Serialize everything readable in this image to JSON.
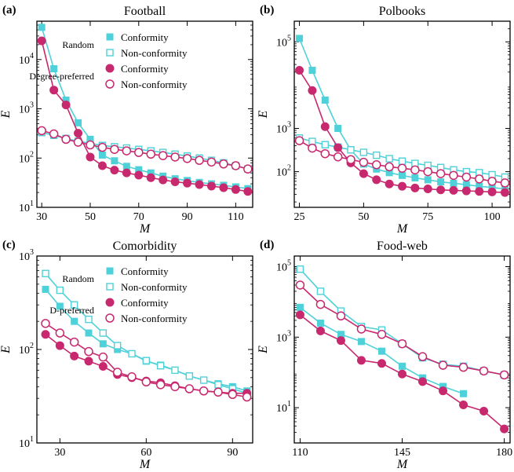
{
  "colors": {
    "random": "#4fd1d9",
    "preferred": "#c8286e",
    "axis": "#000000"
  },
  "chart_data": [
    {
      "type": "line",
      "panel_label": "(a)",
      "title": "Football",
      "xlabel": "M",
      "ylabel": "E",
      "yscale": "log",
      "xlim": [
        28,
        117
      ],
      "ylim": [
        10,
        60000
      ],
      "xticks": [
        30,
        50,
        70,
        90,
        110
      ],
      "yticks": [
        {
          "value": 10,
          "base": "10",
          "exp": "1"
        },
        {
          "value": 100,
          "base": "10",
          "exp": "2"
        },
        {
          "value": 1000,
          "base": "10",
          "exp": "3"
        },
        {
          "value": 10000,
          "base": "10",
          "exp": "4"
        }
      ],
      "x": [
        30,
        35,
        40,
        45,
        50,
        55,
        60,
        65,
        70,
        75,
        80,
        85,
        90,
        95,
        100,
        105,
        110,
        115
      ],
      "legend": {
        "group1": "Random",
        "group2": "Degree-preferred",
        "entries": [
          "Conformity",
          "Non-conformity",
          "Conformity",
          "Non-conformity"
        ]
      },
      "series": [
        {
          "name": "Random Conformity",
          "group": "random",
          "filled": true,
          "marker": "square",
          "values": [
            45000,
            6500,
            1500,
            520,
            240,
            115,
            88,
            68,
            58,
            50,
            43,
            38,
            35,
            32,
            30,
            28,
            26,
            24
          ]
        },
        {
          "name": "Random Non-conformity",
          "group": "random",
          "filled": false,
          "marker": "square",
          "values": [
            330,
            290,
            250,
            220,
            200,
            180,
            170,
            160,
            150,
            140,
            130,
            120,
            110,
            100,
            90,
            80,
            70,
            60
          ]
        },
        {
          "name": "Degree-preferred Conformity",
          "group": "preferred",
          "filled": true,
          "marker": "circle",
          "values": [
            24000,
            2400,
            1200,
            320,
            105,
            70,
            57,
            50,
            45,
            40,
            36,
            33,
            31,
            29,
            27,
            25,
            23,
            21
          ]
        },
        {
          "name": "Degree-preferred Non-conformity",
          "group": "preferred",
          "filled": false,
          "marker": "circle",
          "values": [
            360,
            310,
            240,
            210,
            185,
            165,
            150,
            140,
            130,
            120,
            112,
            105,
            98,
            90,
            83,
            76,
            70,
            60
          ]
        }
      ]
    },
    {
      "type": "line",
      "panel_label": "(b)",
      "title": "Polbooks",
      "xlabel": "M",
      "ylabel": "E",
      "yscale": "log",
      "xlim": [
        23,
        107
      ],
      "ylim": [
        15,
        300000
      ],
      "xticks": [
        25,
        50,
        75,
        100
      ],
      "yticks": [
        {
          "value": 100,
          "base": "10",
          "exp": "2"
        },
        {
          "value": 1000,
          "base": "10",
          "exp": "3"
        },
        {
          "value": 100000,
          "base": "10",
          "exp": "5"
        }
      ],
      "x": [
        25,
        30,
        35,
        40,
        45,
        50,
        55,
        60,
        65,
        70,
        75,
        80,
        85,
        90,
        95,
        100,
        105
      ],
      "series": [
        {
          "name": "Random Conformity",
          "group": "random",
          "filled": true,
          "marker": "square",
          "values": [
            120000,
            22000,
            4500,
            1000,
            320,
            150,
            115,
            95,
            82,
            72,
            65,
            58,
            54,
            50,
            46,
            43,
            40
          ]
        },
        {
          "name": "Random Non-conformity",
          "group": "random",
          "filled": false,
          "marker": "square",
          "values": [
            600,
            500,
            420,
            370,
            320,
            280,
            240,
            200,
            175,
            155,
            140,
            125,
            110,
            100,
            95,
            85,
            75
          ]
        },
        {
          "name": "Degree-preferred Conformity",
          "group": "preferred",
          "filled": true,
          "marker": "circle",
          "values": [
            22000,
            7500,
            1100,
            360,
            160,
            90,
            65,
            52,
            46,
            42,
            40,
            38,
            37,
            36,
            35,
            34,
            33
          ]
        },
        {
          "name": "Degree-preferred Non-conformity",
          "group": "preferred",
          "filled": false,
          "marker": "circle",
          "values": [
            520,
            350,
            260,
            220,
            190,
            165,
            145,
            130,
            120,
            110,
            100,
            90,
            82,
            75,
            68,
            60,
            55
          ]
        }
      ]
    },
    {
      "type": "line",
      "panel_label": "(c)",
      "title": "Comorbidity",
      "xlabel": "M",
      "ylabel": "E",
      "yscale": "log",
      "xlim": [
        22,
        97
      ],
      "ylim": [
        10,
        1000
      ],
      "xticks": [
        30,
        60,
        90
      ],
      "yticks": [
        {
          "value": 10,
          "base": "10",
          "exp": "1"
        },
        {
          "value": 100,
          "base": "10",
          "exp": "2"
        },
        {
          "value": 1000,
          "base": "10",
          "exp": "3"
        }
      ],
      "x": [
        25,
        30,
        35,
        40,
        45,
        50,
        55,
        60,
        65,
        70,
        75,
        80,
        85,
        90,
        95
      ],
      "legend": {
        "group1": "Random",
        "group2": "D-preferred",
        "entries": [
          "Conformity",
          "Non-conformity",
          "Conformity",
          "Non-conformity"
        ]
      },
      "series": [
        {
          "name": "Random Conformity",
          "group": "random",
          "filled": true,
          "marker": "square",
          "values": [
            440,
            290,
            200,
            150,
            115,
            100,
            90,
            75,
            68,
            60,
            52,
            47,
            43,
            40,
            36
          ]
        },
        {
          "name": "Random Non-conformity",
          "group": "random",
          "filled": false,
          "marker": "square",
          "values": [
            650,
            430,
            300,
            210,
            150,
            110,
            90,
            76,
            67,
            60,
            52,
            47,
            42,
            38,
            34
          ]
        },
        {
          "name": "D-preferred Conformity",
          "group": "preferred",
          "filled": true,
          "marker": "circle",
          "values": [
            145,
            110,
            85,
            75,
            66,
            54,
            50,
            46,
            44,
            41,
            38,
            36,
            35,
            34,
            34
          ]
        },
        {
          "name": "D-preferred Non-conformity",
          "group": "preferred",
          "filled": false,
          "marker": "circle",
          "values": [
            190,
            150,
            120,
            95,
            83,
            57,
            51,
            45,
            42,
            40,
            38,
            36,
            35,
            33,
            31
          ]
        }
      ]
    },
    {
      "type": "line",
      "panel_label": "(d)",
      "title": "Food-web",
      "xlabel": "M",
      "ylabel": "E",
      "yscale": "log",
      "xlim": [
        108,
        182
      ],
      "ylim": [
        1,
        200000
      ],
      "xticks": [
        110,
        145,
        180
      ],
      "yticks": [
        {
          "value": 10,
          "base": "10",
          "exp": "1"
        },
        {
          "value": 1000,
          "base": "10",
          "exp": "3"
        },
        {
          "value": 100000,
          "base": "10",
          "exp": "5"
        }
      ],
      "x": [
        110,
        117,
        124,
        131,
        138,
        145,
        152,
        159,
        166,
        173,
        180
      ],
      "series": [
        {
          "name": "Random Conformity",
          "group": "random",
          "filled": true,
          "marker": "square",
          "values": [
            7000,
            2500,
            1200,
            750,
            400,
            150,
            70,
            40,
            25,
            null,
            null
          ]
        },
        {
          "name": "Random Non-conformity",
          "group": "random",
          "filled": false,
          "marker": "square",
          "values": [
            85000,
            20000,
            5500,
            2000,
            1600,
            650,
            260,
            170,
            150,
            110,
            85
          ]
        },
        {
          "name": "Degree-preferred Conformity",
          "group": "preferred",
          "filled": true,
          "marker": "circle",
          "values": [
            4300,
            1500,
            800,
            220,
            180,
            90,
            55,
            30,
            12,
            8,
            2.5
          ]
        },
        {
          "name": "Degree-preferred Non-conformity",
          "group": "preferred",
          "filled": false,
          "marker": "circle",
          "values": [
            30000,
            8500,
            4000,
            1700,
            1200,
            650,
            280,
            160,
            140,
            110,
            85
          ]
        }
      ]
    }
  ]
}
